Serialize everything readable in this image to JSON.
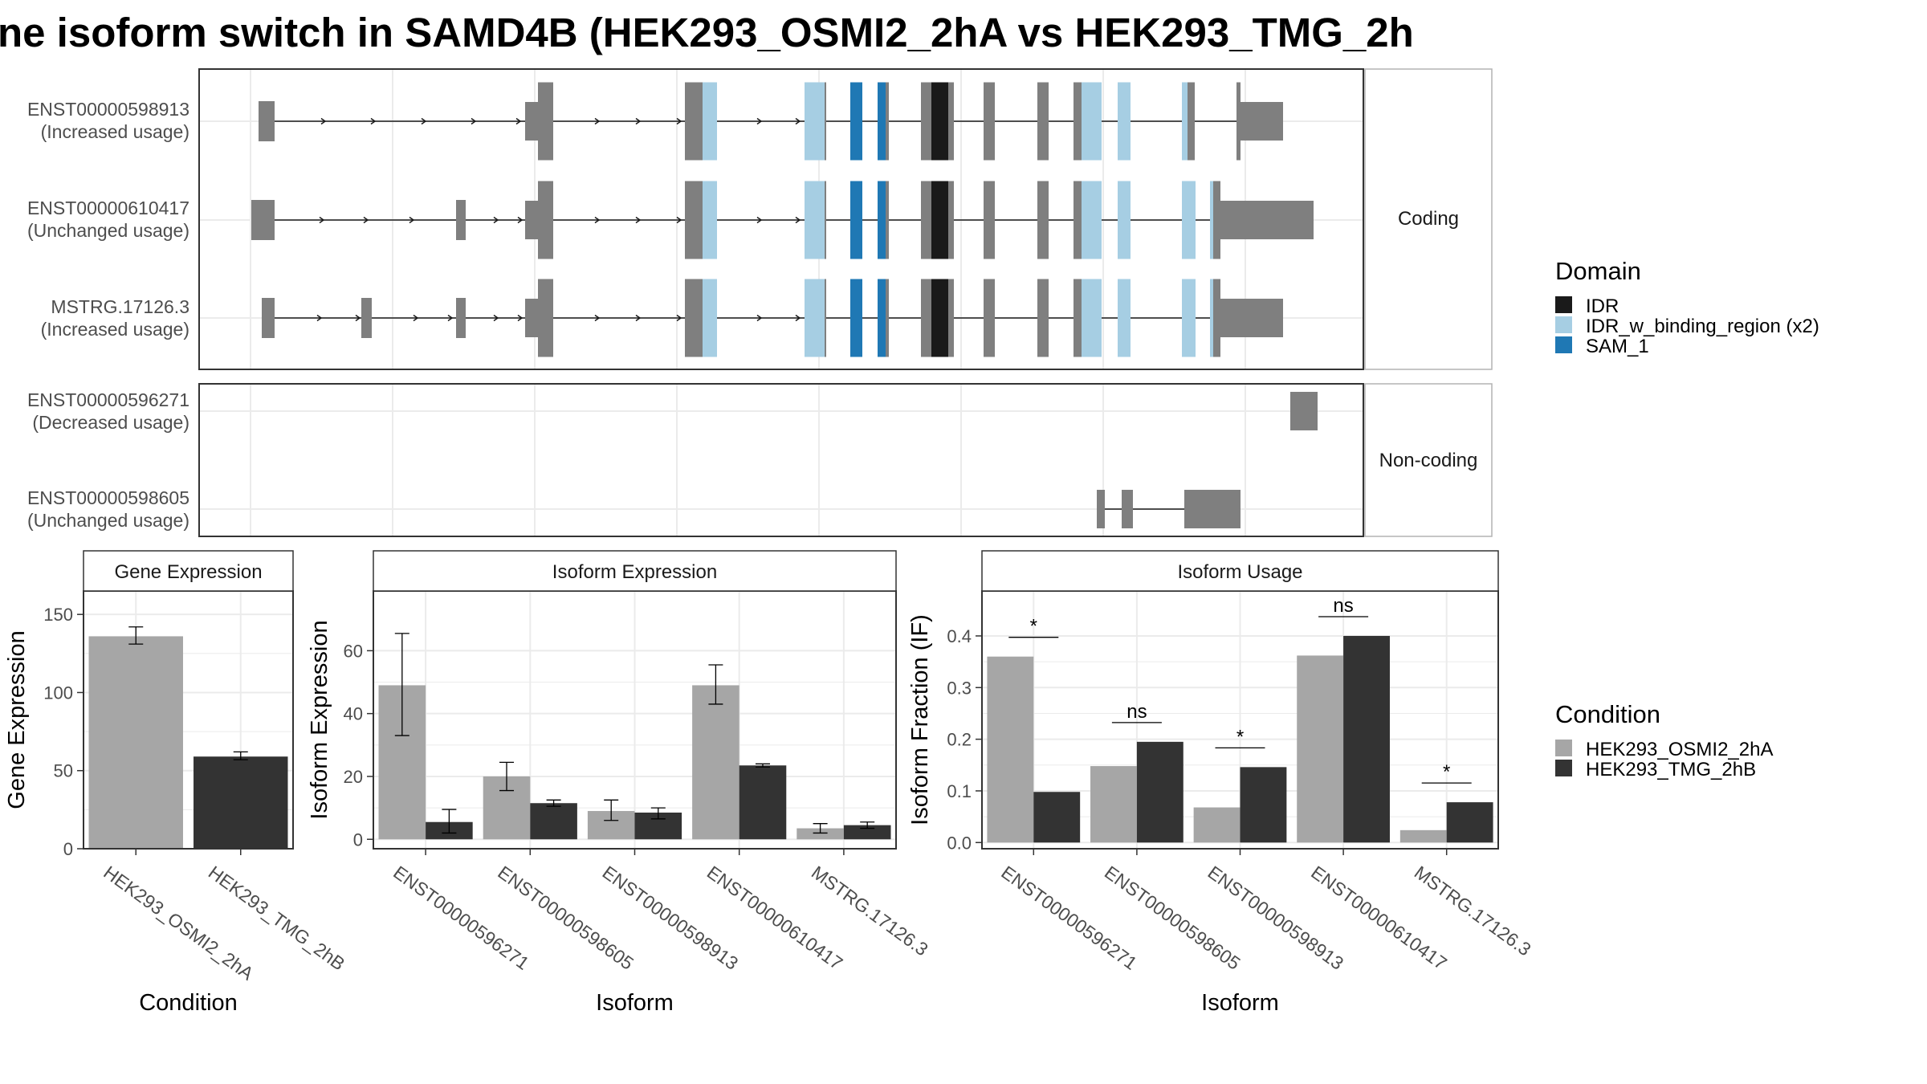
{
  "title": "ne isoform switch in SAMD4B (HEK293_OSMI2_2hA vs HEK293_TMG_2h",
  "colors": {
    "exon": "#7f7f7f",
    "IDR": "#1a1a1a",
    "IDR_w_binding_region": "#a6cee3",
    "SAM_1": "#1f78b4",
    "cond_a": "#a6a6a6",
    "cond_b": "#333333",
    "grid": "#ebebeb",
    "panel_border": "#333333",
    "strip_border": "#b3b3b3"
  },
  "transcripts": {
    "coding_strip": "Coding",
    "noncoding_strip": "Non-coding",
    "rows": [
      {
        "name": "ENST00000598913",
        "usage": "(Increased usage)"
      },
      {
        "name": "ENST00000610417",
        "usage": "(Unchanged usage)"
      },
      {
        "name": "MSTRG.17126.3",
        "usage": "(Increased usage)"
      },
      {
        "name": "ENST00000596271",
        "usage": "(Decreased usage)"
      },
      {
        "name": "ENST00000598605",
        "usage": "(Unchanged usage)"
      }
    ]
  },
  "legend_domain": {
    "title": "Domain",
    "items": [
      {
        "label": "IDR",
        "color": "#1a1a1a"
      },
      {
        "label": "IDR_w_binding_region (x2)",
        "color": "#a6cee3"
      },
      {
        "label": "SAM_1",
        "color": "#1f78b4"
      }
    ]
  },
  "legend_condition": {
    "title": "Condition",
    "items": [
      {
        "label": "HEK293_OSMI2_2hA",
        "color": "#a6a6a6"
      },
      {
        "label": "HEK293_TMG_2hB",
        "color": "#333333"
      }
    ]
  },
  "chart_data": [
    {
      "type": "bar",
      "title": "Gene Expression",
      "xlabel": "Condition",
      "ylabel": "Gene Expression",
      "categories": [
        "HEK293_OSMI2_2hA",
        "HEK293_TMG_2hB"
      ],
      "values": [
        136,
        59
      ],
      "error_low": [
        131,
        57
      ],
      "error_high": [
        142,
        62
      ],
      "ylim": [
        0,
        165
      ],
      "yticks": [
        0,
        50,
        100,
        150
      ]
    },
    {
      "type": "bar",
      "title": "Isoform Expression",
      "xlabel": "Isoform",
      "ylabel": "Isoform Expression",
      "categories": [
        "ENST00000596271",
        "ENST00000598605",
        "ENST00000598913",
        "ENST00000610417",
        "MSTRG.17126.3"
      ],
      "series": [
        {
          "name": "HEK293_OSMI2_2hA",
          "values": [
            49,
            20,
            9,
            49,
            3.5
          ],
          "error_low": [
            33,
            15.5,
            6,
            43,
            2
          ],
          "error_high": [
            65.5,
            24.5,
            12.5,
            55.5,
            5
          ]
        },
        {
          "name": "HEK293_TMG_2hB",
          "values": [
            5.5,
            11.5,
            8.5,
            23.5,
            4.5
          ],
          "error_low": [
            2,
            10.5,
            6.5,
            23,
            3.5
          ],
          "error_high": [
            9.5,
            12.5,
            10,
            24,
            5.5
          ]
        }
      ],
      "ylim": [
        -3,
        79
      ],
      "yticks": [
        0,
        20,
        40,
        60
      ]
    },
    {
      "type": "bar",
      "title": "Isoform Usage",
      "xlabel": "Isoform",
      "ylabel": "Isoform Fraction (IF)",
      "categories": [
        "ENST00000596271",
        "ENST00000598605",
        "ENST00000598913",
        "ENST00000610417",
        "MSTRG.17126.3"
      ],
      "series": [
        {
          "name": "HEK293_OSMI2_2hA",
          "values": [
            0.36,
            0.148,
            0.068,
            0.362,
            0.024
          ]
        },
        {
          "name": "HEK293_TMG_2hB",
          "values": [
            0.098,
            0.195,
            0.146,
            0.4,
            0.078
          ]
        }
      ],
      "significance": [
        "*",
        "ns",
        "*",
        "ns",
        "*"
      ],
      "ylim": [
        -0.012,
        0.487
      ],
      "yticks": [
        0.0,
        0.1,
        0.2,
        0.3,
        0.4
      ]
    }
  ]
}
